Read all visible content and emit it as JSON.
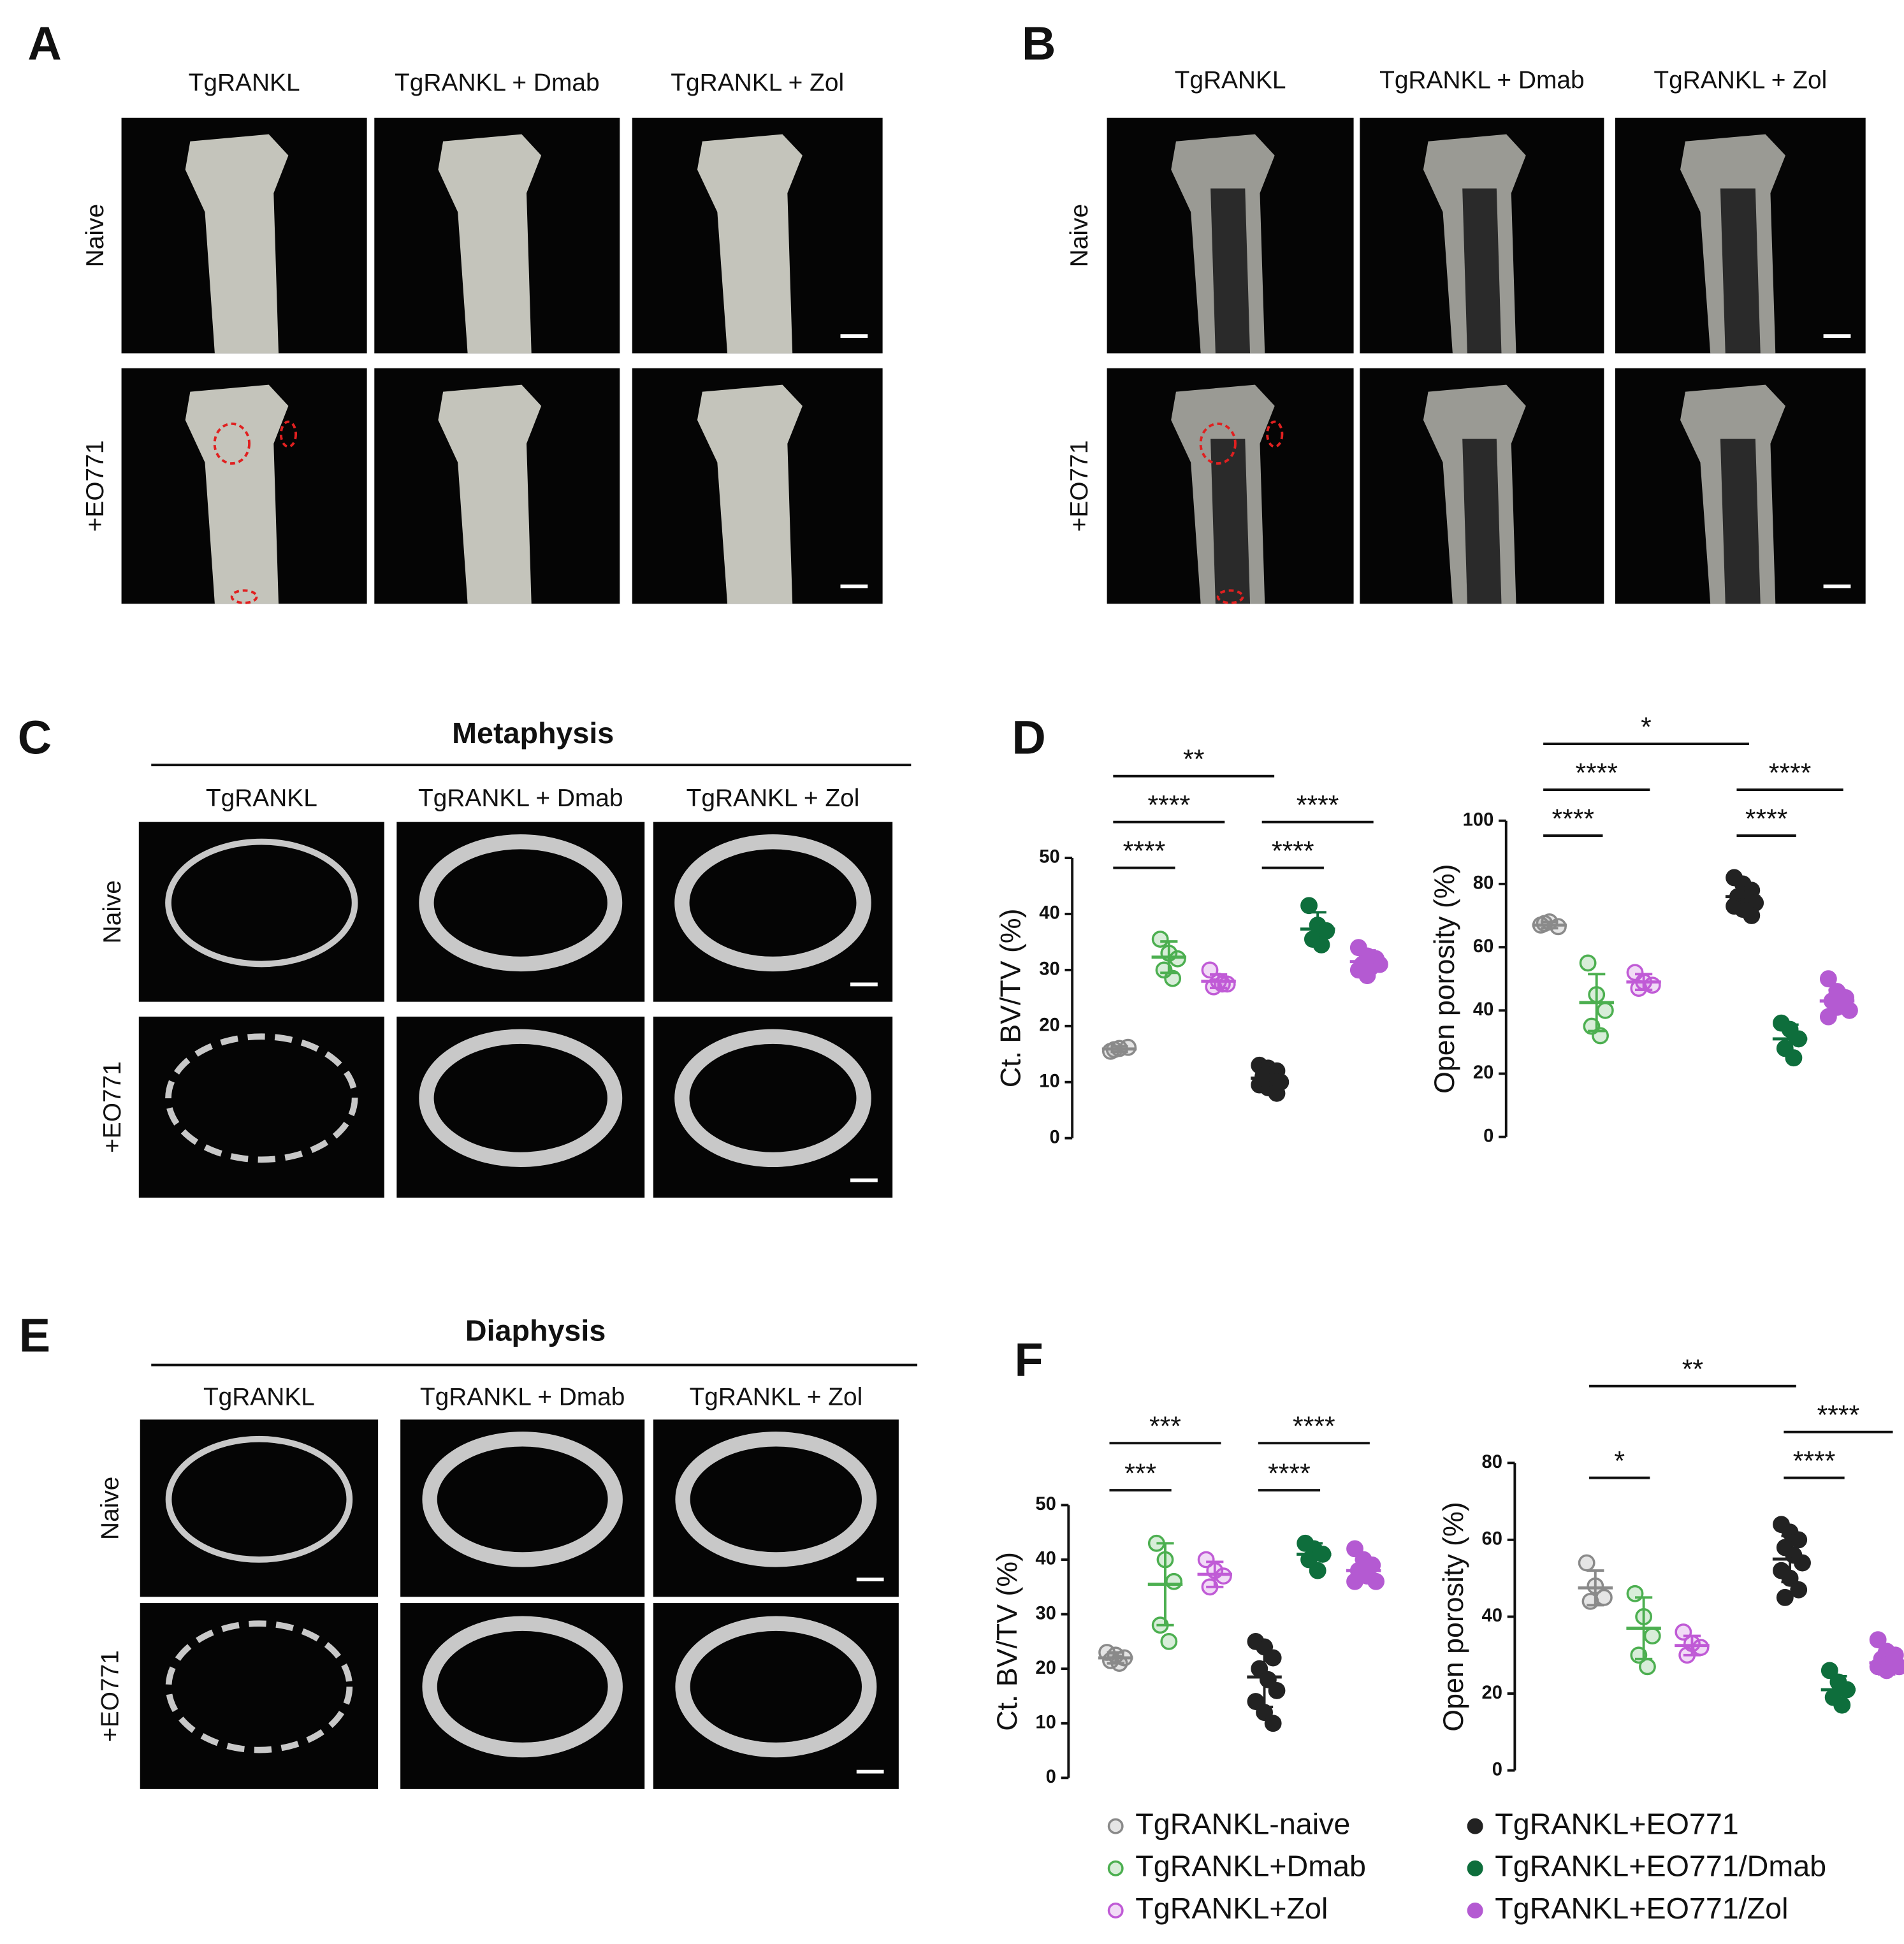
{
  "panels": {
    "A": {
      "letter": "A",
      "columns": [
        "TgRANKL",
        "TgRANKL + Dmab",
        "TgRANKL + Zol"
      ],
      "rows": [
        "Naive",
        "+EO771"
      ]
    },
    "B": {
      "letter": "B",
      "columns": [
        "TgRANKL",
        "TgRANKL + Dmab",
        "TgRANKL + Zol"
      ],
      "rows": [
        "Naive",
        "+EO771"
      ]
    },
    "C": {
      "letter": "C",
      "title": "Metaphysis",
      "columns": [
        "TgRANKL",
        "TgRANKL + Dmab",
        "TgRANKL + Zol"
      ],
      "rows": [
        "Naive",
        "+EO771"
      ]
    },
    "D": {
      "letter": "D"
    },
    "E": {
      "letter": "E",
      "title": "Diaphysis",
      "columns": [
        "TgRANKL",
        "TgRANKL + Dmab",
        "TgRANKL + Zol"
      ],
      "rows": [
        "Naive",
        "+EO771"
      ]
    },
    "F": {
      "letter": "F"
    }
  },
  "groups": [
    {
      "name": "TgRANKL-naive",
      "color": "#8a8a8a",
      "filled": false
    },
    {
      "name": "TgRANKL+Dmab",
      "color": "#4caf50",
      "filled": false
    },
    {
      "name": "TgRANKL+Zol",
      "color": "#c05bd6",
      "filled": false
    },
    {
      "name": "TgRANKL+EO771",
      "color": "#222222",
      "filled": true
    },
    {
      "name": "TgRANKL+EO771/Dmab",
      "color": "#0e6e3c",
      "filled": true
    },
    {
      "name": "TgRANKL+EO771/Zol",
      "color": "#b45ad2",
      "filled": true
    }
  ],
  "chart_data": [
    {
      "type": "strip",
      "y_label": "Ct. BV/TV (%)",
      "ylim": [
        0,
        50
      ],
      "yticks": [
        0,
        10,
        20,
        30,
        40,
        50
      ],
      "series": [
        {
          "values": [
            15.5,
            16,
            16.2,
            15.8
          ],
          "mean": 15.9,
          "sd": 0.5
        },
        {
          "values": [
            35.5,
            33,
            32,
            30,
            28.5
          ],
          "mean": 32.3,
          "sd": 2.8
        },
        {
          "values": [
            30,
            28,
            27.5,
            27,
            27.5
          ],
          "mean": 28,
          "sd": 1.2
        },
        {
          "values": [
            13,
            12.5,
            12,
            11,
            10.5,
            10,
            9.5,
            9,
            8
          ],
          "mean": 10.7,
          "sd": 1.7
        },
        {
          "values": [
            41.5,
            38,
            37,
            35.5,
            34.5
          ],
          "mean": 37.3,
          "sd": 3
        },
        {
          "values": [
            34,
            32.5,
            32,
            31,
            30.5,
            31,
            30,
            29
          ],
          "mean": 31.5,
          "sd": 2
        }
      ],
      "comparisons": [
        {
          "groups": [
            0,
            1
          ],
          "label": "****"
        },
        {
          "groups": [
            0,
            2
          ],
          "label": "****"
        },
        {
          "groups": [
            0,
            3
          ],
          "label": "**"
        },
        {
          "groups": [
            3,
            4
          ],
          "label": "****"
        },
        {
          "groups": [
            3,
            5
          ],
          "label": "****"
        }
      ]
    },
    {
      "type": "strip",
      "y_label": "Open porosity (%)",
      "ylim": [
        0,
        100
      ],
      "yticks": [
        0,
        20,
        40,
        60,
        80,
        100
      ],
      "series": [
        {
          "values": [
            67,
            68,
            66.5,
            67.5
          ],
          "mean": 67,
          "sd": 1
        },
        {
          "values": [
            55,
            45,
            40,
            35,
            32
          ],
          "mean": 42.5,
          "sd": 9
        },
        {
          "values": [
            52,
            49,
            48,
            47
          ],
          "mean": 49,
          "sd": 2.5
        },
        {
          "values": [
            82,
            80,
            78,
            76,
            75,
            74,
            73,
            72,
            70
          ],
          "mean": 76,
          "sd": 4
        },
        {
          "values": [
            36,
            34,
            31,
            28,
            25
          ],
          "mean": 31,
          "sd": 4.5
        },
        {
          "values": [
            50,
            46,
            44,
            43,
            42,
            40,
            38,
            41
          ],
          "mean": 43,
          "sd": 3.5
        }
      ],
      "comparisons": [
        {
          "groups": [
            0,
            1
          ],
          "label": "****"
        },
        {
          "groups": [
            0,
            2
          ],
          "label": "****"
        },
        {
          "groups": [
            0,
            3
          ],
          "label": "*"
        },
        {
          "groups": [
            3,
            4
          ],
          "label": "****"
        },
        {
          "groups": [
            3,
            5
          ],
          "label": "****"
        }
      ]
    },
    {
      "type": "strip",
      "y_label": "Ct. BV/TV (%)",
      "ylim": [
        0,
        50
      ],
      "yticks": [
        0,
        10,
        20,
        30,
        40,
        50
      ],
      "series": [
        {
          "values": [
            23,
            22.5,
            22,
            21.5,
            21
          ],
          "mean": 22,
          "sd": 1
        },
        {
          "values": [
            43,
            40,
            36,
            28,
            25
          ],
          "mean": 35.5,
          "sd": 7.5
        },
        {
          "values": [
            40,
            38,
            37,
            35
          ],
          "mean": 37.3,
          "sd": 2.3
        },
        {
          "values": [
            25,
            24,
            22,
            20,
            18,
            16,
            14,
            12,
            10
          ],
          "mean": 18.5,
          "sd": 5.5
        },
        {
          "values": [
            43,
            42,
            41,
            40,
            38
          ],
          "mean": 41,
          "sd": 2
        },
        {
          "values": [
            42,
            40,
            39,
            38,
            37,
            36,
            36
          ],
          "mean": 38,
          "sd": 2
        }
      ],
      "comparisons": [
        {
          "groups": [
            0,
            1
          ],
          "label": "***"
        },
        {
          "groups": [
            0,
            2
          ],
          "label": "***"
        },
        {
          "groups": [
            3,
            4
          ],
          "label": "****"
        },
        {
          "groups": [
            3,
            5
          ],
          "label": "****"
        }
      ]
    },
    {
      "type": "strip",
      "y_label": "Open porosity (%)",
      "ylim": [
        0,
        80
      ],
      "yticks": [
        0,
        20,
        40,
        60,
        80
      ],
      "series": [
        {
          "values": [
            54,
            48,
            45,
            44
          ],
          "mean": 47.5,
          "sd": 4.5
        },
        {
          "values": [
            46,
            40,
            35,
            30,
            27
          ],
          "mean": 37,
          "sd": 8
        },
        {
          "values": [
            36,
            33,
            32,
            30
          ],
          "mean": 32.5,
          "sd": 2.5
        },
        {
          "values": [
            64,
            62,
            60,
            58,
            56,
            54,
            52,
            50,
            47,
            45
          ],
          "mean": 55,
          "sd": 6
        },
        {
          "values": [
            26,
            23,
            21,
            19,
            17
          ],
          "mean": 21,
          "sd": 3.5
        },
        {
          "values": [
            34,
            31,
            30,
            29,
            28,
            27,
            27,
            26
          ],
          "mean": 28,
          "sd": 3
        }
      ],
      "comparisons": [
        {
          "groups": [
            0,
            1
          ],
          "label": "*"
        },
        {
          "groups": [
            0,
            3
          ],
          "label": "**"
        },
        {
          "groups": [
            3,
            4
          ],
          "label": "****"
        },
        {
          "groups": [
            3,
            5
          ],
          "label": "****"
        }
      ]
    }
  ]
}
